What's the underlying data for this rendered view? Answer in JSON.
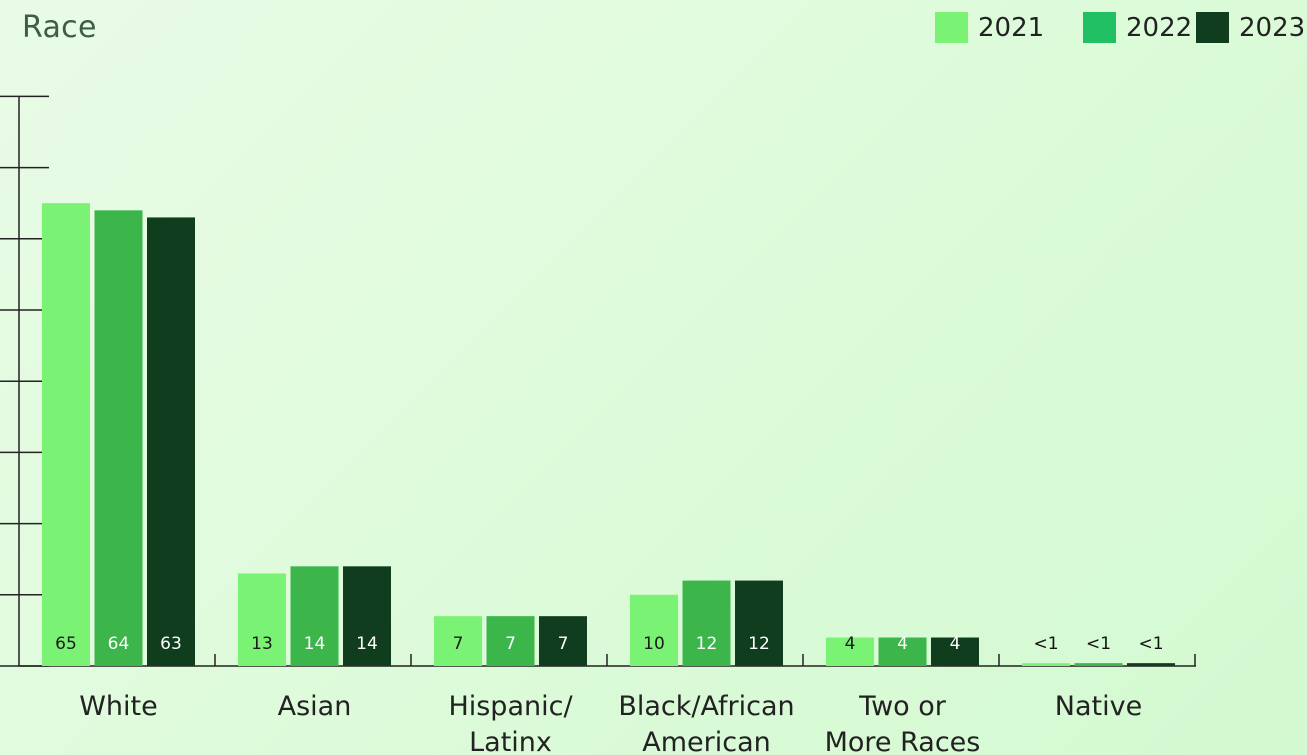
{
  "chart_data": {
    "type": "bar",
    "title": "Race",
    "categories": [
      [
        "White"
      ],
      [
        "Asian"
      ],
      [
        "Hispanic/",
        "Latinx"
      ],
      [
        "Black/African",
        "American"
      ],
      [
        "Two or",
        "More Races"
      ],
      [
        "Native"
      ]
    ],
    "series": [
      {
        "name": "2021",
        "color": "#7af374",
        "values": [
          65,
          13,
          7,
          10,
          4,
          0.4
        ],
        "labels": [
          "65",
          "13",
          "7",
          "10",
          "4",
          "<1"
        ]
      },
      {
        "name": "2022",
        "color": "#3cb54a",
        "values": [
          64,
          14,
          7,
          12,
          4,
          0.4
        ],
        "labels": [
          "64",
          "14",
          "7",
          "12",
          "4",
          "<1"
        ]
      },
      {
        "name": "2023",
        "color": "#0f3d1e",
        "values": [
          63,
          14,
          7,
          12,
          4,
          0.4
        ],
        "labels": [
          "63",
          "14",
          "7",
          "12",
          "4",
          "<1"
        ]
      }
    ],
    "ylim": [
      0,
      80
    ],
    "grid": false,
    "legend_position": "top-right"
  },
  "legend_colors": [
    "#7af374",
    "#21c064",
    "#0f3d1e"
  ]
}
